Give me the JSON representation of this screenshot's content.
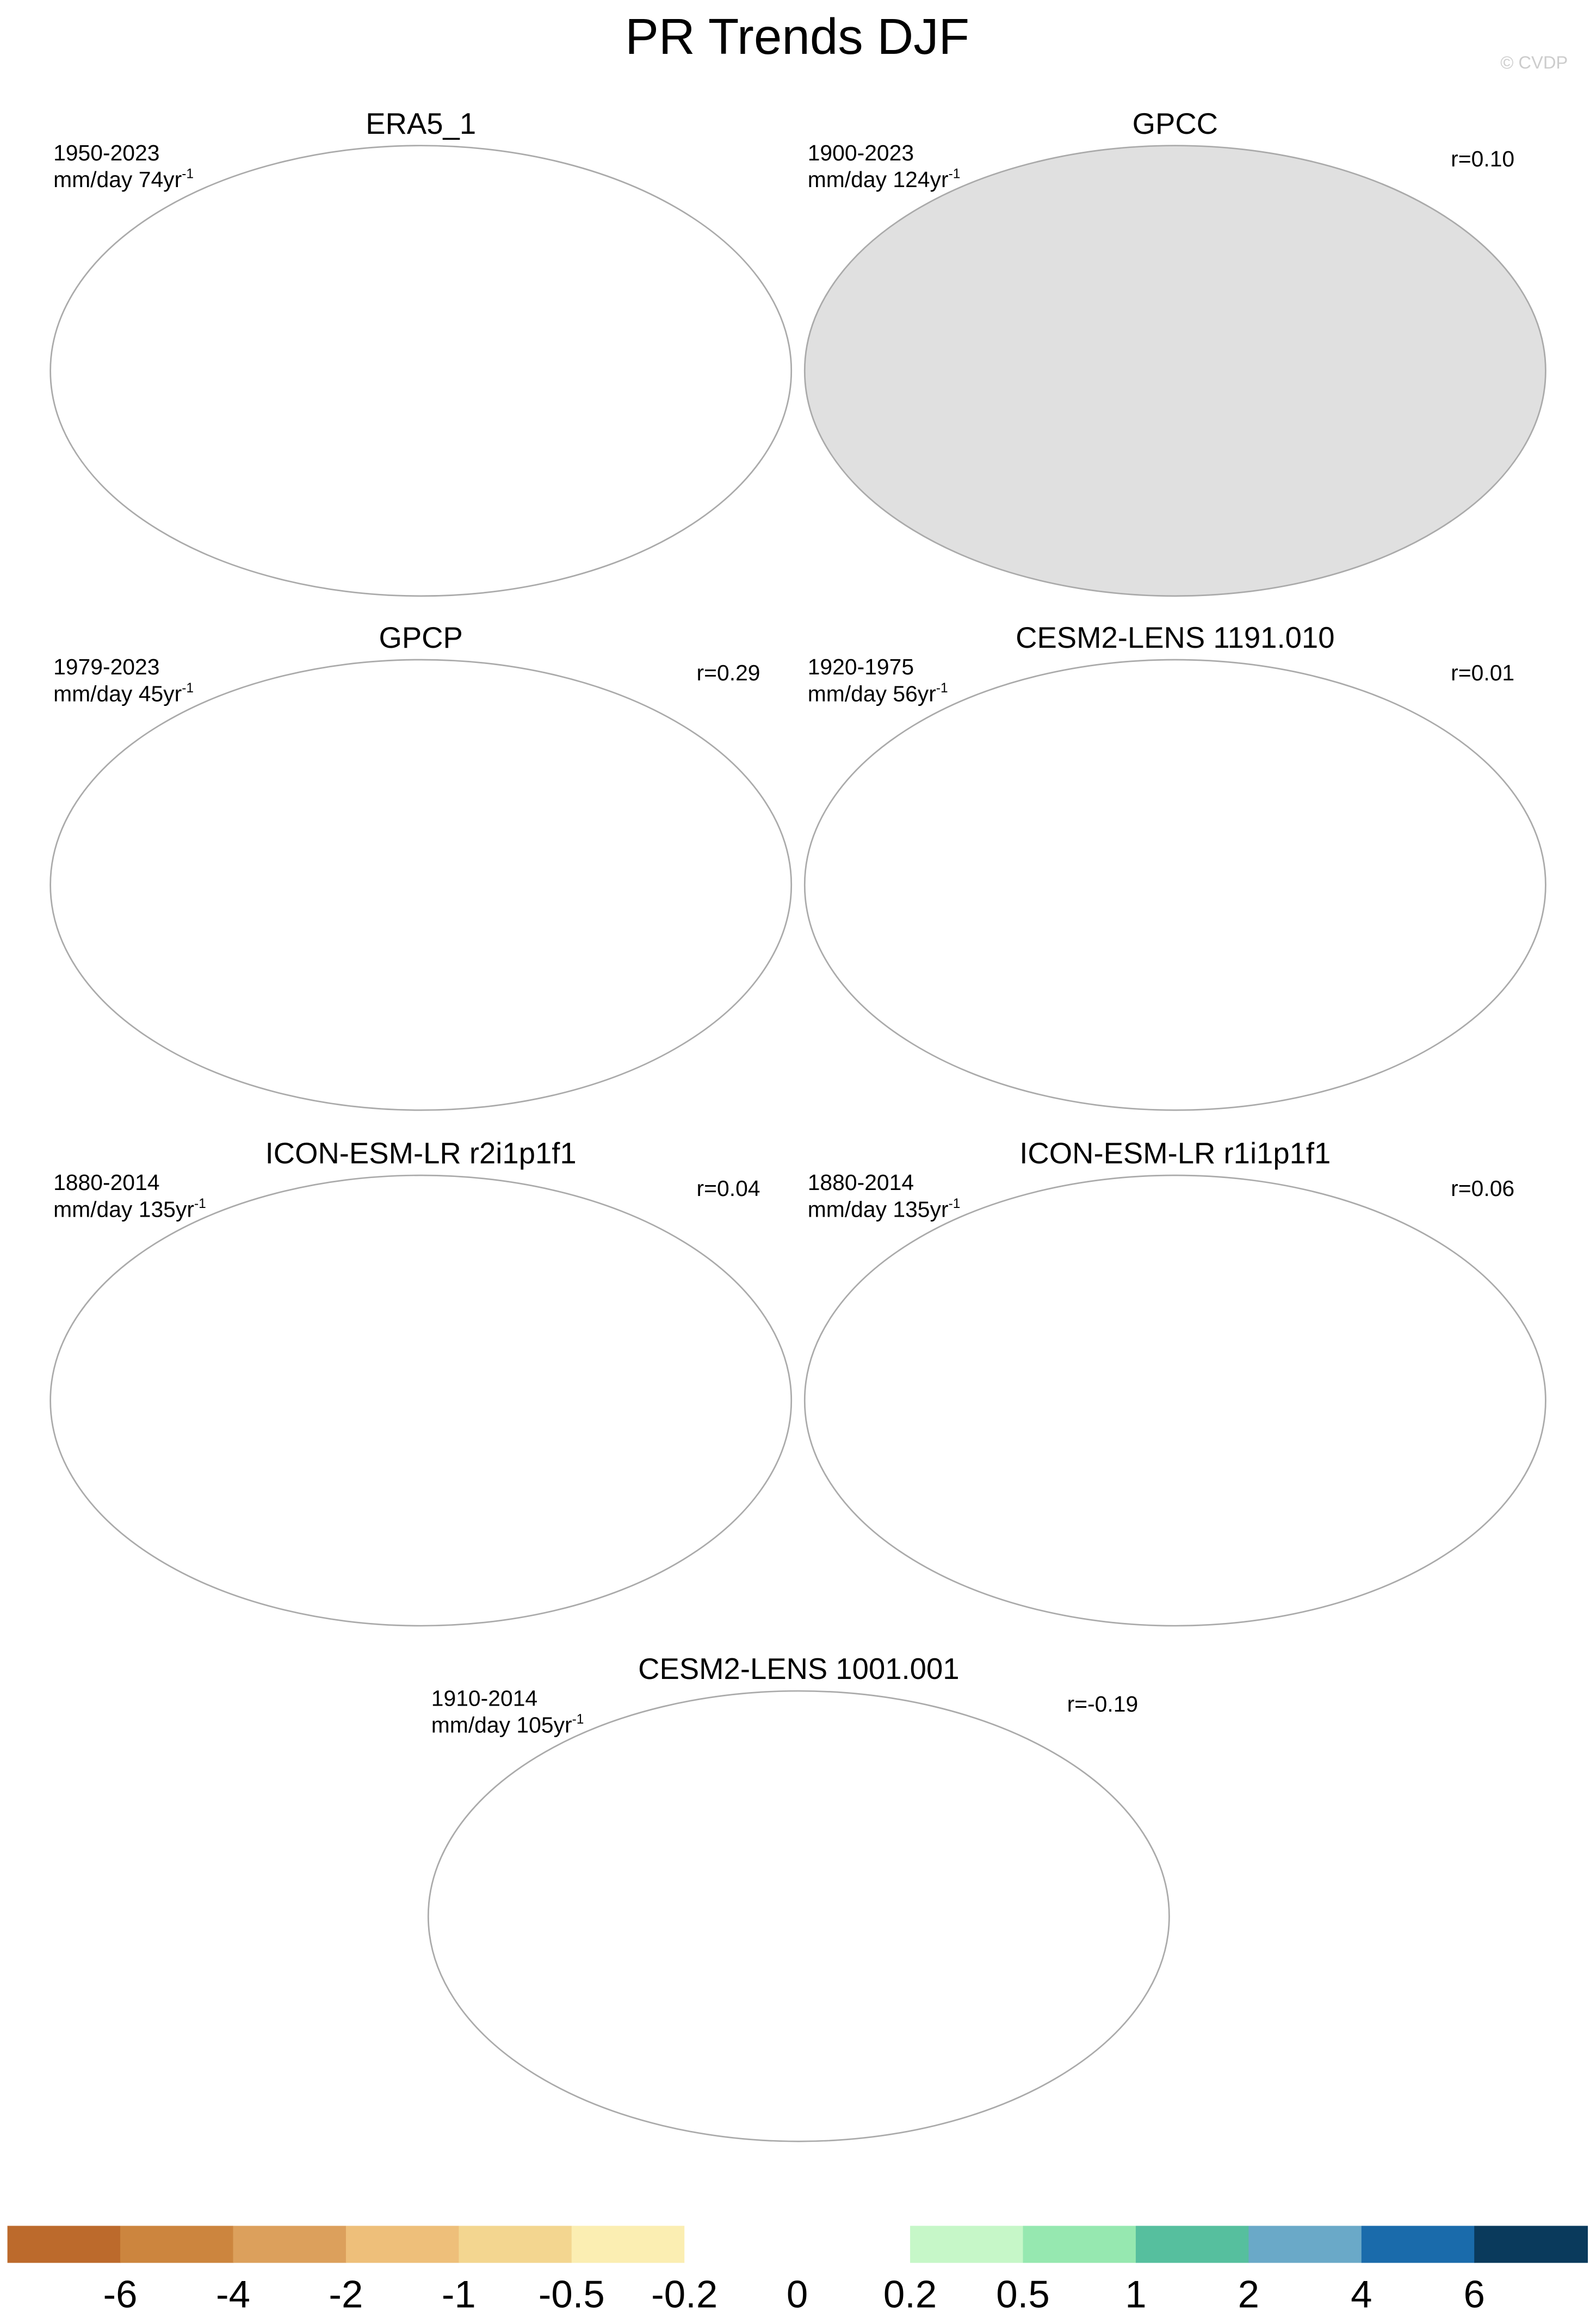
{
  "chart_data": {
    "type": "map",
    "title": "PR Trends DJF",
    "credit": "© CVDP",
    "panels": [
      {
        "title": "ERA5_1",
        "period": "1950-2023",
        "units": "mm/day 74yr",
        "exponent": "-1"
      },
      {
        "title": "GPCC",
        "period": "1900-2023",
        "units": "mm/day 124yr",
        "exponent": "-1",
        "correlation": "r=0.10"
      },
      {
        "title": "GPCP",
        "period": "1979-2023",
        "units": "mm/day 45yr",
        "exponent": "-1",
        "correlation": "r=0.29"
      },
      {
        "title": "CESM2-LENS 1191.010",
        "period": "1920-1975",
        "units": "mm/day 56yr",
        "exponent": "-1",
        "correlation": "r=0.01"
      },
      {
        "title": "ICON-ESM-LR r2i1p1f1",
        "period": "1880-2014",
        "units": "mm/day 135yr",
        "exponent": "-1",
        "correlation": "r=0.04"
      },
      {
        "title": "ICON-ESM-LR r1i1p1f1",
        "period": "1880-2014",
        "units": "mm/day 135yr",
        "exponent": "-1",
        "correlation": "r=0.06"
      },
      {
        "title": "CESM2-LENS 1001.001",
        "period": "1910-2014",
        "units": "mm/day 105yr",
        "exponent": "-1",
        "correlation": "r=-0.19"
      }
    ],
    "colorbar": {
      "levels": [
        -6,
        -4,
        -2,
        -1,
        -0.5,
        -0.2,
        0,
        0.2,
        0.5,
        1,
        2,
        4,
        6
      ],
      "colors": [
        "#bc6a2c",
        "#cc853e",
        "#dca05c",
        "#eebf7a",
        "#f3d690",
        "#fbeeb2",
        "#ffffff",
        "#ffffff",
        "#c6f7c8",
        "#96e8b0",
        "#56bf9e",
        "#6aa9c8",
        "#1a6bab",
        "#0a3a5c"
      ]
    }
  }
}
